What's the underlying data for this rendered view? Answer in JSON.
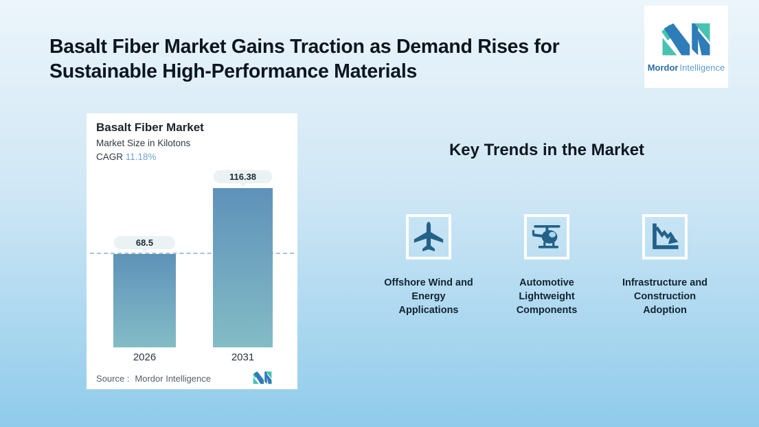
{
  "header": {
    "title_line1": "Basalt Fiber Market Gains Traction as Demand Rises for",
    "title_line2": "Sustainable High-Performance Materials"
  },
  "logo": {
    "brand_bold": "Mordor",
    "brand_light": "Intelligence",
    "colors": {
      "blue": "#2E7CB8",
      "teal": "#49C2B1"
    }
  },
  "chart_card": {
    "title": "Basalt Fiber Market",
    "subtitle": "Market Size in Kilotons",
    "cagr_label": "CAGR",
    "cagr_value": "11.18%",
    "source_label": "Source :",
    "source_value": "Mordor Intelligence"
  },
  "chart_data": {
    "type": "bar",
    "title": "Basalt Fiber Market",
    "subtitle": "Market Size in Kilotons",
    "unit": "Kilotons",
    "cagr_percent": 11.18,
    "categories": [
      "2026",
      "2031"
    ],
    "values": [
      68.5,
      116.38
    ],
    "value_labels": [
      "68.5",
      "116.38"
    ],
    "ylim": [
      0,
      132
    ],
    "reference_line_y": 68.5,
    "grid": "off",
    "legend": "none",
    "bar_gradient_top": "#5E92B9",
    "bar_gradient_bottom": "#83BCC6",
    "reference_line_color": "#A9C0D8",
    "source": "Mordor Intelligence"
  },
  "trends": {
    "heading": "Key Trends in the Market",
    "icon_color": "#246189",
    "items": [
      {
        "icon": "airplane-icon",
        "label": "Offshore Wind and Energy Applications",
        "lines": [
          "Offshore Wind and",
          "Energy",
          "Applications"
        ]
      },
      {
        "icon": "helicopter-icon",
        "label": "Automotive Lightweight Components",
        "lines": [
          "Automotive",
          "Lightweight",
          "Components"
        ]
      },
      {
        "icon": "declining-chart-icon",
        "label": "Infrastructure and Construction Adoption",
        "lines": [
          "Infrastructure and",
          "Construction",
          "Adoption"
        ]
      }
    ]
  },
  "colors": {
    "background_top": "#ECF5FB",
    "background_bottom": "#8FCBEB",
    "card_background": "#FFFFFF",
    "title_text": "#0D1620",
    "callout_background": "#EAF2F4",
    "cagr_value_text": "#6BA5D8"
  }
}
